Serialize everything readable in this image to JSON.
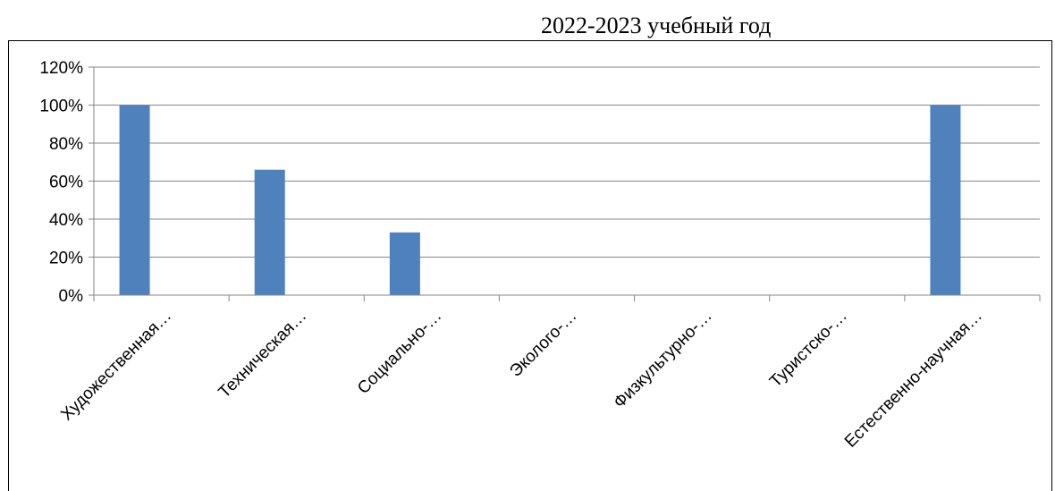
{
  "chart_data": {
    "type": "bar",
    "title": "2022-2023 учебный год",
    "categories": [
      "Художественная…",
      "Техническая…",
      "Социально-…",
      "Эколого-…",
      "Физкультурно-…",
      "Туристско-…",
      "Естественно-научная…"
    ],
    "values": [
      1.0,
      0.66,
      0.33,
      0,
      0,
      0,
      1.0
    ],
    "ylim": [
      0,
      1.2
    ],
    "yticks": [
      "0%",
      "20%",
      "40%",
      "60%",
      "80%",
      "100%",
      "120%"
    ],
    "grid": true,
    "bar_color": "#4F81BD",
    "xlabel": "",
    "ylabel": ""
  }
}
